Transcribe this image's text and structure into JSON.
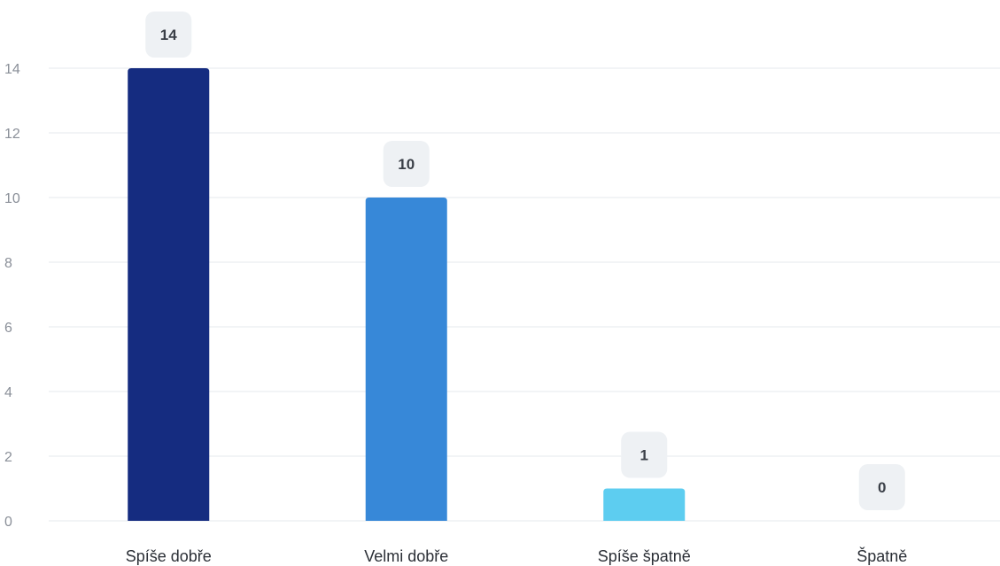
{
  "chart_data": {
    "type": "bar",
    "categories": [
      "Spíše dobře",
      "Velmi dobře",
      "Spíše špatně",
      "Špatně"
    ],
    "values": [
      14,
      10,
      1,
      0
    ],
    "colors": [
      "#152c80",
      "#3788d8",
      "#5dcdf0",
      "#5dcdf0"
    ],
    "yticks": [
      0,
      2,
      4,
      6,
      8,
      10,
      12,
      14
    ],
    "ylim": [
      0,
      14
    ],
    "grid": true,
    "gridline_color": "#e6e9ee",
    "label_bg_color": "#eef1f4",
    "title": "",
    "xlabel": "",
    "ylabel": ""
  }
}
